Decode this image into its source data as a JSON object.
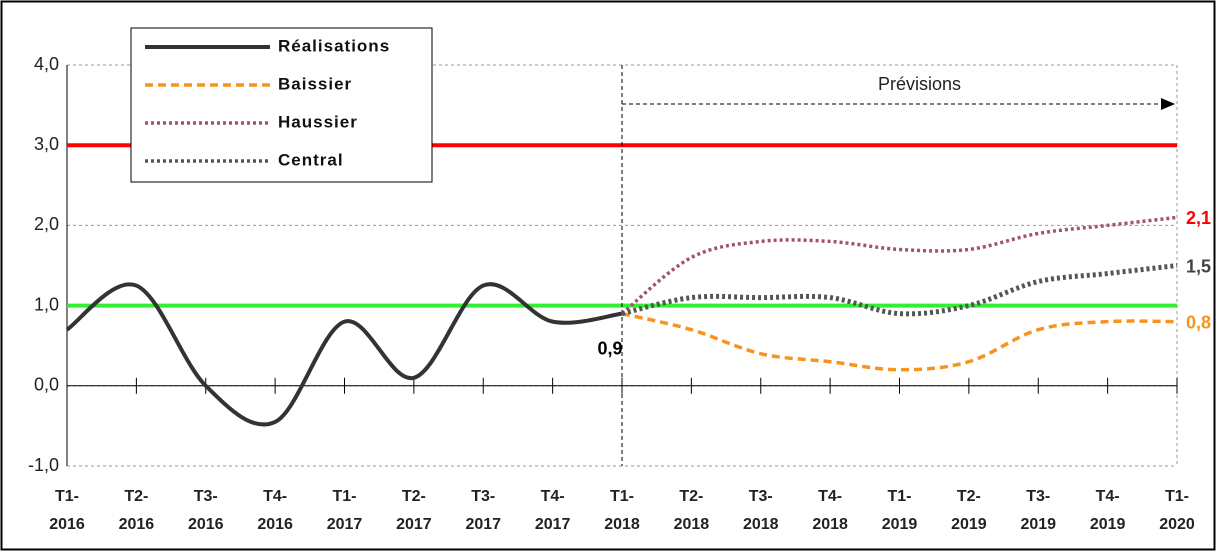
{
  "chart_data": {
    "type": "line",
    "categories": [
      "T1-2016",
      "T2-2016",
      "T3-2016",
      "T4-2016",
      "T1-2017",
      "T2-2017",
      "T3-2017",
      "T4-2017",
      "T1-2018",
      "T2-2018",
      "T3-2018",
      "T4-2018",
      "T1-2019",
      "T2-2019",
      "T3-2019",
      "T4-2019",
      "T1-2020"
    ],
    "series": [
      {
        "name": "Réalisations",
        "color": "#333333",
        "dash": "solid",
        "values": [
          0.7,
          1.25,
          0.0,
          -0.45,
          0.8,
          0.1,
          1.25,
          0.8,
          0.9,
          null,
          null,
          null,
          null,
          null,
          null,
          null,
          null
        ],
        "value_labels": [
          null,
          null,
          null,
          null,
          null,
          null,
          null,
          null,
          "0,9",
          null,
          null,
          null,
          null,
          null,
          null,
          null,
          null
        ],
        "label_color": "#000000"
      },
      {
        "name": "Baissier",
        "color": "#f7941d",
        "dash": "dashed",
        "values": [
          null,
          null,
          null,
          null,
          null,
          null,
          null,
          null,
          0.9,
          0.7,
          0.4,
          0.3,
          0.2,
          0.3,
          0.7,
          0.8,
          0.8
        ],
        "value_labels": [
          null,
          null,
          null,
          null,
          null,
          null,
          null,
          null,
          null,
          null,
          null,
          null,
          null,
          null,
          null,
          null,
          "0,8"
        ],
        "label_color": "#f7941d"
      },
      {
        "name": "Haussier",
        "color": "#a0526e",
        "dash": "dotted",
        "values": [
          null,
          null,
          null,
          null,
          null,
          null,
          null,
          null,
          0.9,
          1.6,
          1.8,
          1.8,
          1.7,
          1.7,
          1.9,
          2.0,
          2.1
        ],
        "value_labels": [
          null,
          null,
          null,
          null,
          null,
          null,
          null,
          null,
          null,
          null,
          null,
          null,
          null,
          null,
          null,
          null,
          "2,1"
        ],
        "label_color": "#ff0000"
      },
      {
        "name": "Central",
        "color": "#555555",
        "dash": "dotted",
        "values": [
          null,
          null,
          null,
          null,
          null,
          null,
          null,
          null,
          0.9,
          1.1,
          1.1,
          1.1,
          0.9,
          1.0,
          1.3,
          1.4,
          1.5
        ],
        "value_labels": [
          null,
          null,
          null,
          null,
          null,
          null,
          null,
          null,
          null,
          null,
          null,
          null,
          null,
          null,
          null,
          null,
          "1,5"
        ],
        "label_color": "#444444"
      }
    ],
    "reference_lines": [
      {
        "value": 3,
        "color": "#ff0000"
      },
      {
        "value": 1,
        "color": "#33ee33"
      }
    ],
    "annotation": "Prévisions",
    "ylim": [
      -1,
      4
    ],
    "yticks": [
      {
        "value": -1,
        "label": "-1,0"
      },
      {
        "value": 0,
        "label": "0,0"
      },
      {
        "value": 1,
        "label": "1,0"
      },
      {
        "value": 2,
        "label": "2,0"
      },
      {
        "value": 3,
        "label": "3,0"
      },
      {
        "value": 4,
        "label": "4,0"
      }
    ],
    "grid": true,
    "legend": "upper left"
  }
}
